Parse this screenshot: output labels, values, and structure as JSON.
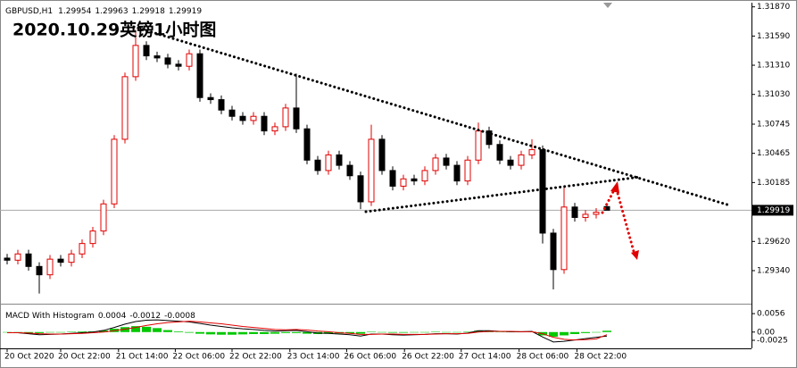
{
  "chart_data": {
    "type": "candlestick",
    "symbol": "GBPUSD,H1",
    "header_values": [
      1.29954,
      1.29963,
      1.29918,
      1.29919
    ],
    "title": "2020.10.29英镑1小时图",
    "up_color": "#e00000",
    "down_color": "#000000",
    "open": [
      1.2946,
      1.2944,
      1.295,
      1.2938,
      1.293,
      1.2945,
      1.2942,
      1.295,
      1.296,
      1.2972,
      1.2998,
      1.306,
      1.312,
      1.315,
      1.314,
      1.3138,
      1.3132,
      1.313,
      1.3142,
      1.31,
      1.3098,
      1.3088,
      1.3082,
      1.3078,
      1.3082,
      1.3068,
      1.3072,
      1.309,
      1.307,
      1.304,
      1.303,
      1.3045,
      1.3035,
      1.3025,
      1.3,
      1.306,
      1.303,
      1.3015,
      1.3022,
      1.302,
      1.303,
      1.3042,
      1.3035,
      1.302,
      1.304,
      1.3068,
      1.3055,
      1.304,
      1.3035,
      1.3045,
      1.305,
      1.297,
      1.2935,
      1.2995,
      1.2985,
      1.2988,
      1.29954
    ],
    "high": [
      1.295,
      1.2954,
      1.2954,
      1.2942,
      1.2949,
      1.2949,
      1.2954,
      1.2964,
      1.2976,
      1.3002,
      1.3064,
      1.3124,
      1.3165,
      1.3154,
      1.3144,
      1.3142,
      1.3136,
      1.3146,
      1.3146,
      1.3104,
      1.3102,
      1.3092,
      1.3086,
      1.3086,
      1.3086,
      1.3076,
      1.3094,
      1.3123,
      1.3074,
      1.3044,
      1.3049,
      1.3049,
      1.3039,
      1.3029,
      1.3074,
      1.3064,
      1.3034,
      1.3026,
      1.3026,
      1.3034,
      1.3046,
      1.3046,
      1.3039,
      1.3044,
      1.3076,
      1.3072,
      1.3059,
      1.3044,
      1.3049,
      1.306,
      1.3054,
      1.2974,
      1.3014,
      1.2999,
      1.2992,
      1.2994,
      1.29963
    ],
    "low": [
      1.294,
      1.294,
      1.2934,
      1.2912,
      1.2926,
      1.2938,
      1.2938,
      1.2946,
      1.2956,
      1.2968,
      1.2994,
      1.3056,
      1.3116,
      1.3136,
      1.3134,
      1.3128,
      1.3126,
      1.3126,
      1.3096,
      1.3094,
      1.3084,
      1.3078,
      1.3074,
      1.3074,
      1.3064,
      1.3064,
      1.3068,
      1.3066,
      1.3036,
      1.3026,
      1.3026,
      1.3031,
      1.3021,
      1.2993,
      1.2996,
      1.3026,
      1.3011,
      1.3011,
      1.3016,
      1.3016,
      1.3026,
      1.3031,
      1.3016,
      1.3016,
      1.3036,
      1.3051,
      1.3036,
      1.3031,
      1.3031,
      1.3041,
      1.296,
      1.2916,
      1.2931,
      1.2981,
      1.2981,
      1.2984,
      1.29918
    ],
    "close": [
      1.2944,
      1.295,
      1.2938,
      1.293,
      1.2945,
      1.2942,
      1.295,
      1.296,
      1.2972,
      1.2998,
      1.306,
      1.312,
      1.315,
      1.314,
      1.3138,
      1.3132,
      1.313,
      1.3142,
      1.31,
      1.3098,
      1.3088,
      1.3082,
      1.3078,
      1.3082,
      1.3068,
      1.3072,
      1.309,
      1.307,
      1.304,
      1.303,
      1.3045,
      1.3035,
      1.3025,
      1.3,
      1.306,
      1.303,
      1.3015,
      1.3022,
      1.302,
      1.303,
      1.3042,
      1.3035,
      1.302,
      1.304,
      1.3068,
      1.3055,
      1.304,
      1.3035,
      1.3045,
      1.305,
      1.297,
      1.2935,
      1.2995,
      1.2985,
      1.2988,
      1.299,
      1.29919
    ],
    "ylim": [
      1.2904,
      1.3191
    ],
    "yticks": [
      {
        "value": 1.3187,
        "label": "1.31870"
      },
      {
        "value": 1.3159,
        "label": "1.31590"
      },
      {
        "value": 1.3131,
        "label": "1.31310"
      },
      {
        "value": 1.3103,
        "label": "1.31030"
      },
      1.30745,
      1.30465,
      1.30185,
      {
        "value": 1.2962,
        "label": "1.29620"
      },
      {
        "value": 1.2934,
        "label": "1.29340"
      }
    ],
    "last_price": 1.29919,
    "xticks": [
      {
        "value": 0,
        "label": "20 Oct 2020"
      },
      {
        "value": 5,
        "label": "20 Oct 22:00"
      },
      {
        "value": 10.4,
        "label": "21 Oct 14:00"
      },
      {
        "value": 15.7,
        "label": "22 Oct 06:00"
      },
      {
        "value": 21,
        "label": "22 Oct 22:00"
      },
      {
        "value": 26.4,
        "label": "23 Oct 14:00"
      },
      {
        "value": 31.7,
        "label": "26 Oct 06:00"
      },
      {
        "value": 37.1,
        "label": "26 Oct 22:00"
      },
      {
        "value": 42.4,
        "label": "27 Oct 14:00"
      },
      {
        "value": 47.8,
        "label": "28 Oct 06:00"
      },
      {
        "value": 53.2,
        "label": "28 Oct 22:00"
      }
    ],
    "macd": {
      "title": "MACD With Histogram",
      "printed_values": [
        0.0004,
        -0.0012,
        -0.0008
      ],
      "hist_color": "#00c800",
      "macd_color": "#000000",
      "signal_color": "#e00000",
      "histogram": [
        0,
        0,
        -0.0002,
        -0.0003,
        -0.0001,
        0,
        0.0001,
        0.0002,
        0.0002,
        0.0005,
        0.001,
        0.0015,
        0.0018,
        0.0016,
        0.0012,
        0.0006,
        0.0002,
        -0.0002,
        -0.0005,
        -0.0007,
        -0.0008,
        -0.0008,
        -0.0007,
        -0.0006,
        -0.0006,
        -0.0005,
        -0.0003,
        -0.0003,
        -0.0005,
        -0.0006,
        -0.0005,
        -0.0004,
        -0.0004,
        -0.0005,
        0.0001,
        0,
        -0.0002,
        -0.0002,
        -0.0001,
        0,
        0.0001,
        0,
        -0.0001,
        0.0001,
        0.0004,
        0.0004,
        0.0002,
        0.0001,
        0.0001,
        0.0001,
        -0.001,
        -0.0014,
        -0.001,
        -0.0006,
        -0.0003,
        -0.0001,
        0.0004
      ],
      "macd": [
        -0.0002,
        -0.0002,
        -0.0005,
        -0.0008,
        -0.0007,
        -0.0006,
        -0.0004,
        -0.0002,
        0,
        0.0005,
        0.0014,
        0.0024,
        0.0032,
        0.0036,
        0.0037,
        0.0035,
        0.0033,
        0.0031,
        0.0026,
        0.0021,
        0.0017,
        0.0013,
        0.001,
        0.0008,
        0.0005,
        0.0003,
        0.0004,
        0.0005,
        0.0001,
        -0.0003,
        -0.0004,
        -0.0006,
        -0.0008,
        -0.0012,
        -0.0006,
        -0.0006,
        -0.0008,
        -0.0009,
        -0.0008,
        -0.0007,
        -0.0005,
        -0.0005,
        -0.0006,
        -0.0003,
        0.0004,
        0.0004,
        0.0002,
        0.0001,
        0.0001,
        0.0002,
        -0.0015,
        -0.003,
        -0.0028,
        -0.0024,
        -0.002,
        -0.0016,
        -0.0012
      ],
      "signal": [
        -0.0002,
        -0.0002,
        -0.0003,
        -0.0005,
        -0.0006,
        -0.0006,
        -0.0005,
        -0.0004,
        -0.0002,
        0,
        0.0004,
        0.0009,
        0.0014,
        0.002,
        0.0025,
        0.0029,
        0.0031,
        0.0033,
        0.0031,
        0.0028,
        0.0025,
        0.0021,
        0.0017,
        0.0014,
        0.0011,
        0.0008,
        0.0007,
        0.0008,
        0.0006,
        0.0003,
        0.0001,
        -0.0002,
        -0.0004,
        -0.0007,
        -0.0007,
        -0.0006,
        -0.0006,
        -0.0007,
        -0.0007,
        -0.0007,
        -0.0006,
        -0.0005,
        -0.0005,
        -0.0004,
        0,
        0.0002,
        0.0002,
        0.0002,
        0.0001,
        0.0001,
        -0.0005,
        -0.0016,
        -0.0022,
        -0.0024,
        -0.0023,
        -0.0021,
        -0.0008
      ],
      "ylim": [
        -0.0044,
        0.0078
      ],
      "yticks": [
        0.0056,
        {
          "value": 0,
          "label": "0.00"
        },
        -0.0025
      ]
    }
  }
}
